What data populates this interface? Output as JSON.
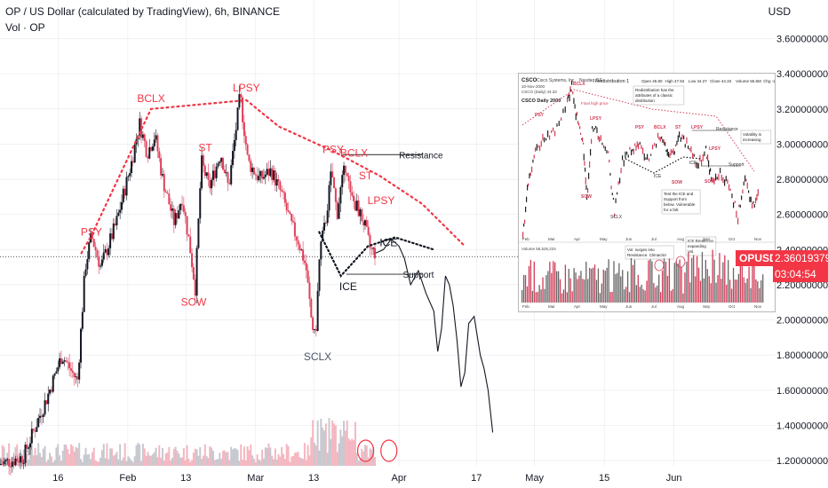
{
  "header": {
    "title": "OP / US Dollar (calculated by TradingView), 6h, BINANCE",
    "volume_label": "Vol · OP",
    "currency": "USD"
  },
  "price_tag": {
    "symbol": "OPUSD",
    "price": "2.36019379",
    "countdown": "03:04:54"
  },
  "colors": {
    "up": "#131722",
    "down": "#e0405a",
    "annotation": "#f23645",
    "sclx": "#4a5568",
    "grid": "#e6e9ee"
  },
  "chart_data": {
    "type": "candlestick",
    "y_ticks": [
      "3.60000000",
      "3.40000000",
      "3.20000000",
      "3.00000000",
      "2.80000000",
      "2.60000000",
      "2.40000000",
      "2.20000000",
      "2.00000000",
      "1.80000000",
      "1.60000000",
      "1.40000000",
      "1.20000000"
    ],
    "y_range": [
      1.17,
      3.82
    ],
    "x_ticks": [
      {
        "label": "16",
        "pos": 0.075
      },
      {
        "label": "Feb",
        "pos": 0.165
      },
      {
        "label": "13",
        "pos": 0.24
      },
      {
        "label": "Mar",
        "pos": 0.33
      },
      {
        "label": "13",
        "pos": 0.405
      },
      {
        "label": "Apr",
        "pos": 0.515
      },
      {
        "label": "17",
        "pos": 0.615
      },
      {
        "label": "May",
        "pos": 0.69
      },
      {
        "label": "15",
        "pos": 0.78
      },
      {
        "label": "Jun",
        "pos": 0.87
      }
    ],
    "current_price": 2.36,
    "price_path": [
      [
        0,
        1.18
      ],
      [
        0.03,
        1.22
      ],
      [
        0.06,
        1.55
      ],
      [
        0.08,
        1.8
      ],
      [
        0.1,
        1.65
      ],
      [
        0.11,
        2.3
      ],
      [
        0.118,
        2.48
      ],
      [
        0.13,
        2.3
      ],
      [
        0.15,
        2.55
      ],
      [
        0.17,
        2.9
      ],
      [
        0.18,
        3.12
      ],
      [
        0.19,
        2.95
      ],
      [
        0.2,
        3.05
      ],
      [
        0.21,
        2.8
      ],
      [
        0.225,
        2.55
      ],
      [
        0.235,
        2.7
      ],
      [
        0.245,
        2.42
      ],
      [
        0.252,
        2.18
      ],
      [
        0.26,
        2.9
      ],
      [
        0.27,
        2.75
      ],
      [
        0.285,
        2.95
      ],
      [
        0.295,
        2.75
      ],
      [
        0.305,
        3.1
      ],
      [
        0.31,
        3.28
      ],
      [
        0.32,
        2.9
      ],
      [
        0.335,
        2.8
      ],
      [
        0.35,
        2.85
      ],
      [
        0.365,
        2.7
      ],
      [
        0.375,
        2.55
      ],
      [
        0.385,
        2.45
      ],
      [
        0.395,
        2.3
      ],
      [
        0.402,
        2.0
      ],
      [
        0.407,
        1.88
      ],
      [
        0.413,
        2.4
      ],
      [
        0.42,
        2.55
      ],
      [
        0.428,
        2.85
      ],
      [
        0.435,
        2.6
      ],
      [
        0.44,
        2.75
      ],
      [
        0.447,
        2.9
      ],
      [
        0.452,
        2.7
      ],
      [
        0.46,
        2.65
      ],
      [
        0.47,
        2.55
      ],
      [
        0.478,
        2.4
      ],
      [
        0.485,
        2.38
      ]
    ],
    "projection_path": [
      [
        0.485,
        2.38
      ],
      [
        0.495,
        2.4
      ],
      [
        0.505,
        2.46
      ],
      [
        0.515,
        2.42
      ],
      [
        0.522,
        2.35
      ],
      [
        0.53,
        2.2
      ],
      [
        0.54,
        2.28
      ],
      [
        0.55,
        2.15
      ],
      [
        0.56,
        2.05
      ],
      [
        0.565,
        1.82
      ],
      [
        0.57,
        1.95
      ],
      [
        0.575,
        2.25
      ],
      [
        0.58,
        2.2
      ],
      [
        0.585,
        2.08
      ],
      [
        0.59,
        1.88
      ],
      [
        0.595,
        1.62
      ],
      [
        0.6,
        1.7
      ],
      [
        0.605,
        1.98
      ],
      [
        0.612,
        2.02
      ],
      [
        0.62,
        1.8
      ],
      [
        0.625,
        1.72
      ],
      [
        0.63,
        1.6
      ],
      [
        0.636,
        1.36
      ]
    ],
    "annotations": [
      {
        "text": "PSY",
        "pos": 0.118,
        "price": 2.48,
        "role": "phase"
      },
      {
        "text": "BCLX",
        "pos": 0.195,
        "price": 3.24,
        "role": "phase"
      },
      {
        "text": "ST",
        "pos": 0.265,
        "price": 2.96,
        "role": "phase"
      },
      {
        "text": "SOW",
        "pos": 0.25,
        "price": 2.08,
        "role": "phase"
      },
      {
        "text": "LPSY",
        "pos": 0.318,
        "price": 3.3,
        "role": "phase"
      },
      {
        "text": "PSY",
        "pos": 0.43,
        "price": 2.95,
        "role": "phase"
      },
      {
        "text": "BCLX",
        "pos": 0.457,
        "price": 2.93,
        "role": "phase"
      },
      {
        "text": "ST",
        "pos": 0.472,
        "price": 2.8,
        "role": "phase"
      },
      {
        "text": "LPSY",
        "pos": 0.492,
        "price": 2.66,
        "role": "phase"
      },
      {
        "text": "SCLX",
        "pos": 0.41,
        "price": 1.77,
        "role": "sclx"
      },
      {
        "text": "ICE",
        "pos": 0.49,
        "price": 2.42,
        "role": "level"
      },
      {
        "text": "ICE",
        "pos": 0.438,
        "price": 2.17,
        "role": "level"
      },
      {
        "text": "Resistance",
        "pos": 0.515,
        "price": 2.92,
        "role": "level"
      },
      {
        "text": "Support",
        "pos": 0.52,
        "price": 2.24,
        "role": "level"
      }
    ]
  },
  "inset": {
    "ticker": "CSCO",
    "company": "Cisco Systems, Inc.",
    "exchange": "Nasdaq GS",
    "date": "10-Nov-2000",
    "study": "Redistribution 1",
    "ohlc": {
      "open": "Open 45.80",
      "high": "High 47.94",
      "low": "Low 44.27",
      "close": "Close 44.33",
      "volume": "Volume 55.5M",
      "chg": "Chg -2.82 (-5.98%)"
    },
    "legend_price": "CSCO (Daily) 44.33",
    "daily_label": "CSCO Daily 2000",
    "volume_legend": "Volume 55,525,224",
    "months": [
      "Feb",
      "Mar",
      "Apr",
      "May",
      "Jun",
      "Jul",
      "Aug",
      "Sep",
      "Oct",
      "Nov"
    ],
    "labels": [
      {
        "text": "BCLX",
        "x": 61,
        "y": 13,
        "cls": "phase"
      },
      {
        "text": "Final high price",
        "x": 70,
        "y": 35,
        "cls": "note"
      },
      {
        "text": "PSY",
        "x": 18,
        "y": 48,
        "cls": "phase"
      },
      {
        "text": "LPSY",
        "x": 80,
        "y": 52,
        "cls": "phase"
      },
      {
        "text": "SOW",
        "x": 70,
        "y": 140,
        "cls": "phase"
      },
      {
        "text": "SCLX",
        "x": 103,
        "y": 163,
        "cls": "sclx"
      },
      {
        "text": "PSY",
        "x": 131,
        "y": 62,
        "cls": "phase"
      },
      {
        "text": "BCLX",
        "x": 152,
        "y": 62,
        "cls": "phase"
      },
      {
        "text": "ST",
        "x": 176,
        "y": 62,
        "cls": "phase"
      },
      {
        "text": "LPSY",
        "x": 194,
        "y": 62,
        "cls": "phase"
      },
      {
        "text": "Resistance",
        "x": 222,
        "y": 64,
        "cls": "plain"
      },
      {
        "text": "LPSY",
        "x": 214,
        "y": 86,
        "cls": "phase"
      },
      {
        "text": "ICE",
        "x": 152,
        "y": 117,
        "cls": "plain"
      },
      {
        "text": "ICE",
        "x": 192,
        "y": 102,
        "cls": "plain"
      },
      {
        "text": "SOW",
        "x": 172,
        "y": 124,
        "cls": "phase"
      },
      {
        "text": "SOW",
        "x": 209,
        "y": 123,
        "cls": "phase"
      },
      {
        "text": "Support",
        "x": 236,
        "y": 104,
        "cls": "plain"
      }
    ],
    "notes": [
      {
        "lines": [
          "Redistribution has the",
          "attributes of a classic",
          "distribution"
        ],
        "x": 131,
        "y": 20
      },
      {
        "lines": [
          "Volatility is",
          "increasing"
        ],
        "x": 252,
        "y": 70
      },
      {
        "lines": [
          "Test the ICE and",
          "Support from",
          "below. Vulnerable",
          "for a fall."
        ],
        "x": 163,
        "y": 137
      },
      {
        "lines": [
          "Vol. surges into",
          "Resistance. Climactic!"
        ],
        "x": 122,
        "y": 200
      },
      {
        "lines": [
          "ICE Breaks on",
          "expanding",
          "Vol."
        ],
        "x": 190,
        "y": 190
      }
    ]
  }
}
